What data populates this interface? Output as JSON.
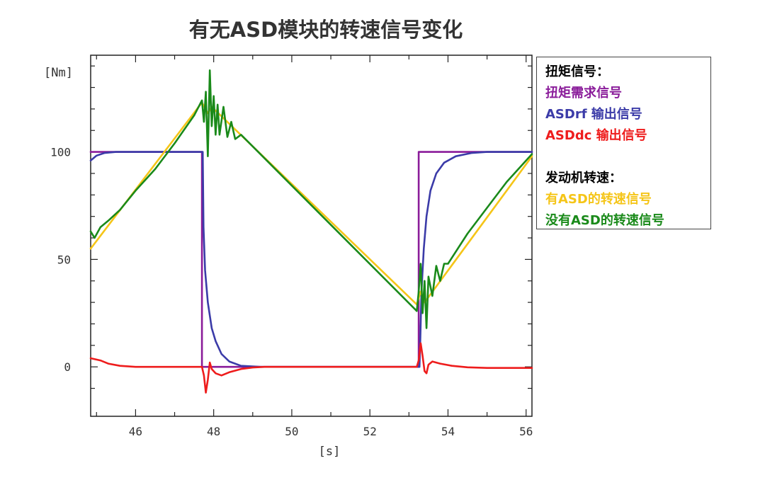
{
  "chart_data": {
    "type": "line",
    "title": "有无ASD模块的转速信号变化",
    "ylabel": "[Nm]",
    "xlabel": "[s]",
    "xlim": [
      44.85,
      56.15
    ],
    "ylim": [
      -23,
      145
    ],
    "x_ticks": [
      46,
      48,
      50,
      52,
      54,
      56
    ],
    "y_ticks": [
      0,
      50,
      100
    ],
    "legend": {
      "torque_heading": "扭矩信号：",
      "speed_heading": "发动机转速：",
      "placement": "right"
    },
    "series": [
      {
        "name": "扭矩需求信号",
        "color": "#8a1c9a",
        "points": [
          [
            44.85,
            100
          ],
          [
            47.7,
            100
          ],
          [
            47.7,
            0
          ],
          [
            53.25,
            0
          ],
          [
            53.25,
            100
          ],
          [
            56.15,
            100
          ]
        ]
      },
      {
        "name": "ASDrf  输出信号",
        "color": "#3b3ba8",
        "points": [
          [
            44.85,
            96
          ],
          [
            45.0,
            98.3
          ],
          [
            45.2,
            99.5
          ],
          [
            45.5,
            100
          ],
          [
            47.72,
            100
          ],
          [
            47.74,
            65
          ],
          [
            47.78,
            45
          ],
          [
            47.85,
            30
          ],
          [
            47.95,
            18
          ],
          [
            48.05,
            12
          ],
          [
            48.2,
            6
          ],
          [
            48.4,
            2.5
          ],
          [
            48.7,
            0.5
          ],
          [
            49.2,
            0
          ],
          [
            53.27,
            0
          ],
          [
            53.29,
            12
          ],
          [
            53.32,
            35
          ],
          [
            53.38,
            55
          ],
          [
            53.45,
            70
          ],
          [
            53.55,
            82
          ],
          [
            53.7,
            90
          ],
          [
            53.9,
            95
          ],
          [
            54.2,
            98
          ],
          [
            54.6,
            99.5
          ],
          [
            55.0,
            100
          ],
          [
            56.15,
            100
          ]
        ]
      },
      {
        "name": "ASDdc 输出信号",
        "color": "#ee1c1c",
        "points": [
          [
            44.85,
            4
          ],
          [
            45.1,
            3
          ],
          [
            45.3,
            1.5
          ],
          [
            45.6,
            0.5
          ],
          [
            46.0,
            0
          ],
          [
            47.7,
            0
          ],
          [
            47.75,
            -4
          ],
          [
            47.8,
            -12
          ],
          [
            47.85,
            -6
          ],
          [
            47.9,
            2
          ],
          [
            47.95,
            -1
          ],
          [
            48.05,
            -3
          ],
          [
            48.2,
            -4
          ],
          [
            48.4,
            -2.5
          ],
          [
            48.7,
            -1
          ],
          [
            49.0,
            -0.3
          ],
          [
            49.3,
            0
          ],
          [
            53.2,
            0
          ],
          [
            53.25,
            3
          ],
          [
            53.3,
            11
          ],
          [
            53.35,
            5
          ],
          [
            53.4,
            -2
          ],
          [
            53.45,
            -3
          ],
          [
            53.5,
            1
          ],
          [
            53.6,
            2.5
          ],
          [
            53.8,
            1.5
          ],
          [
            54.1,
            0.5
          ],
          [
            54.5,
            -0.2
          ],
          [
            55.0,
            -0.5
          ],
          [
            56.15,
            -0.5
          ]
        ]
      },
      {
        "name": "有ASD的转速信号",
        "color": "#f5c518",
        "points": [
          [
            44.85,
            55
          ],
          [
            47.7,
            123
          ],
          [
            47.85,
            118
          ],
          [
            47.95,
            121
          ],
          [
            53.2,
            29
          ],
          [
            53.3,
            35
          ],
          [
            53.4,
            30
          ],
          [
            56.15,
            98
          ]
        ]
      },
      {
        "name": "没有ASD的转速信号",
        "color": "#1a8a1a",
        "points": [
          [
            44.85,
            63
          ],
          [
            44.95,
            60
          ],
          [
            45.1,
            65
          ],
          [
            45.3,
            68
          ],
          [
            45.6,
            73
          ],
          [
            46.0,
            82
          ],
          [
            46.5,
            92
          ],
          [
            47.0,
            104
          ],
          [
            47.5,
            117
          ],
          [
            47.7,
            124
          ],
          [
            47.75,
            114
          ],
          [
            47.8,
            128
          ],
          [
            47.85,
            98
          ],
          [
            47.9,
            138
          ],
          [
            47.95,
            112
          ],
          [
            48.0,
            126
          ],
          [
            48.05,
            108
          ],
          [
            48.1,
            122
          ],
          [
            48.15,
            108
          ],
          [
            48.25,
            121
          ],
          [
            48.35,
            107
          ],
          [
            48.45,
            114
          ],
          [
            48.55,
            106
          ],
          [
            48.7,
            108
          ],
          [
            53.2,
            26
          ],
          [
            53.25,
            35
          ],
          [
            53.3,
            48
          ],
          [
            53.35,
            25
          ],
          [
            53.4,
            40
          ],
          [
            53.45,
            18
          ],
          [
            53.5,
            42
          ],
          [
            53.6,
            33
          ],
          [
            53.7,
            47
          ],
          [
            53.8,
            40
          ],
          [
            53.9,
            48
          ],
          [
            54.0,
            48
          ],
          [
            54.5,
            62
          ],
          [
            55.0,
            74
          ],
          [
            55.5,
            86
          ],
          [
            56.15,
            99
          ]
        ]
      }
    ]
  }
}
